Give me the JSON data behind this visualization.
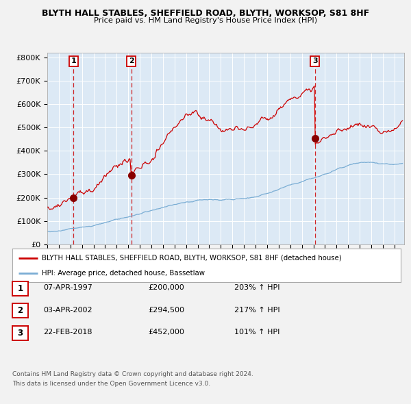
{
  "title1": "BLYTH HALL STABLES, SHEFFIELD ROAD, BLYTH, WORKSOP, S81 8HF",
  "title2": "Price paid vs. HM Land Registry's House Price Index (HPI)",
  "ylim": [
    0,
    820000
  ],
  "xlim_start": 1995.0,
  "xlim_end": 2025.83,
  "background_color": "#dce9f5",
  "grid_color": "#ffffff",
  "red_color": "#cc0000",
  "blue_color": "#7aadd4",
  "sale_dates": [
    1997.27,
    2002.27,
    2018.13
  ],
  "sale_prices": [
    200000,
    294500,
    452000
  ],
  "sale_labels": [
    "1",
    "2",
    "3"
  ],
  "legend_red": "BLYTH HALL STABLES, SHEFFIELD ROAD, BLYTH, WORKSOP, S81 8HF (detached house)",
  "legend_blue": "HPI: Average price, detached house, Bassetlaw",
  "table_data": [
    [
      "1",
      "07-APR-1997",
      "£200,000",
      "203% ↑ HPI"
    ],
    [
      "2",
      "03-APR-2002",
      "£294,500",
      "217% ↑ HPI"
    ],
    [
      "3",
      "22-FEB-2018",
      "£452,000",
      "101% ↑ HPI"
    ]
  ],
  "footnote1": "Contains HM Land Registry data © Crown copyright and database right 2024.",
  "footnote2": "This data is licensed under the Open Government Licence v3.0.",
  "fig_bg": "#f2f2f2",
  "yticks": [
    0,
    100000,
    200000,
    300000,
    400000,
    500000,
    600000,
    700000,
    800000
  ],
  "ytick_labels": [
    "£0",
    "£100K",
    "£200K",
    "£300K",
    "£400K",
    "£500K",
    "£600K",
    "£700K",
    "£800K"
  ]
}
